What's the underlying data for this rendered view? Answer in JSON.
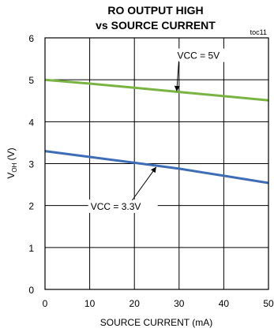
{
  "chart_data": {
    "type": "line",
    "title_line1": "RO OUTPUT HIGH",
    "title_line2": "vs SOURCE CURRENT",
    "tag": "toc11",
    "xlabel": "SOURCE CURRENT (mA)",
    "ylabel_main": "V",
    "ylabel_sub": "OH",
    "ylabel_unit": " (V)",
    "xlim": [
      0,
      50
    ],
    "ylim": [
      0,
      6
    ],
    "xticks": [
      "0",
      "10",
      "20",
      "30",
      "40",
      "50"
    ],
    "yticks": [
      "0",
      "1",
      "2",
      "3",
      "4",
      "5",
      "6"
    ],
    "grid": true,
    "series": [
      {
        "name": "VCC = 5V",
        "color": "#79b443",
        "x": [
          0,
          10,
          20,
          30,
          40,
          50
        ],
        "y": [
          5.0,
          4.91,
          4.81,
          4.71,
          4.61,
          4.51
        ]
      },
      {
        "name": "VCC = 3.3V",
        "color": "#3e6db5",
        "x": [
          0,
          10,
          20,
          30,
          40,
          50
        ],
        "y": [
          3.3,
          3.16,
          3.02,
          2.88,
          2.71,
          2.54
        ]
      }
    ]
  }
}
